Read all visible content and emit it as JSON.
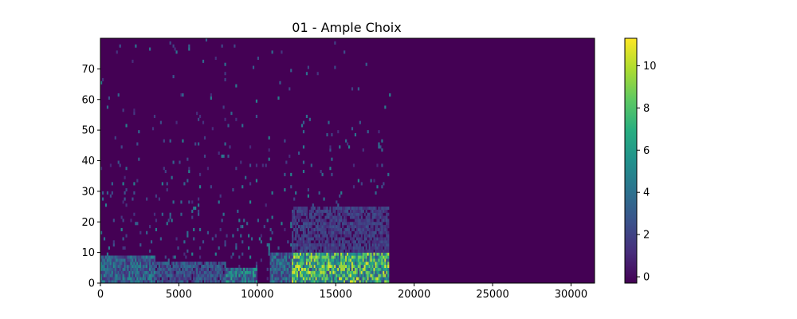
{
  "chart_data": {
    "type": "heatmap",
    "title": "01 - Ample Choix",
    "xlabel": "",
    "ylabel": "",
    "xlim": [
      0,
      31500
    ],
    "ylim": [
      0,
      80
    ],
    "x_ticks": [
      0,
      5000,
      10000,
      15000,
      20000,
      25000,
      30000
    ],
    "x_tick_labels": [
      "0",
      "5000",
      "10000",
      "15000",
      "20000",
      "25000",
      "30000"
    ],
    "y_ticks": [
      0,
      10,
      20,
      30,
      40,
      50,
      60,
      70
    ],
    "y_tick_labels": [
      "0",
      "10",
      "20",
      "30",
      "40",
      "50",
      "60",
      "70"
    ],
    "colormap": "viridis",
    "background_color": "#440154",
    "colorbar": {
      "range": [
        -0.3,
        11.3
      ],
      "ticks": [
        0,
        2,
        4,
        6,
        8,
        10
      ],
      "tick_labels": [
        "0",
        "2",
        "4",
        "6",
        "8",
        "10"
      ]
    },
    "activity_extent_x": [
      0,
      18500
    ],
    "activity_regions": [
      {
        "x_range": [
          0,
          3500
        ],
        "y_range": [
          0,
          9
        ],
        "intensity": 4
      },
      {
        "x_range": [
          3500,
          8000
        ],
        "y_range": [
          0,
          7
        ],
        "intensity": 3
      },
      {
        "x_range": [
          8000,
          10000
        ],
        "y_range": [
          0,
          5
        ],
        "intensity": 5
      },
      {
        "x_range": [
          10800,
          12200
        ],
        "y_range": [
          0,
          10
        ],
        "intensity": 4
      },
      {
        "x_range": [
          12200,
          18400
        ],
        "y_range": [
          0,
          10
        ],
        "intensity": 8
      },
      {
        "x_range": [
          12200,
          18400
        ],
        "y_range": [
          10,
          25
        ],
        "intensity": 2
      }
    ]
  }
}
